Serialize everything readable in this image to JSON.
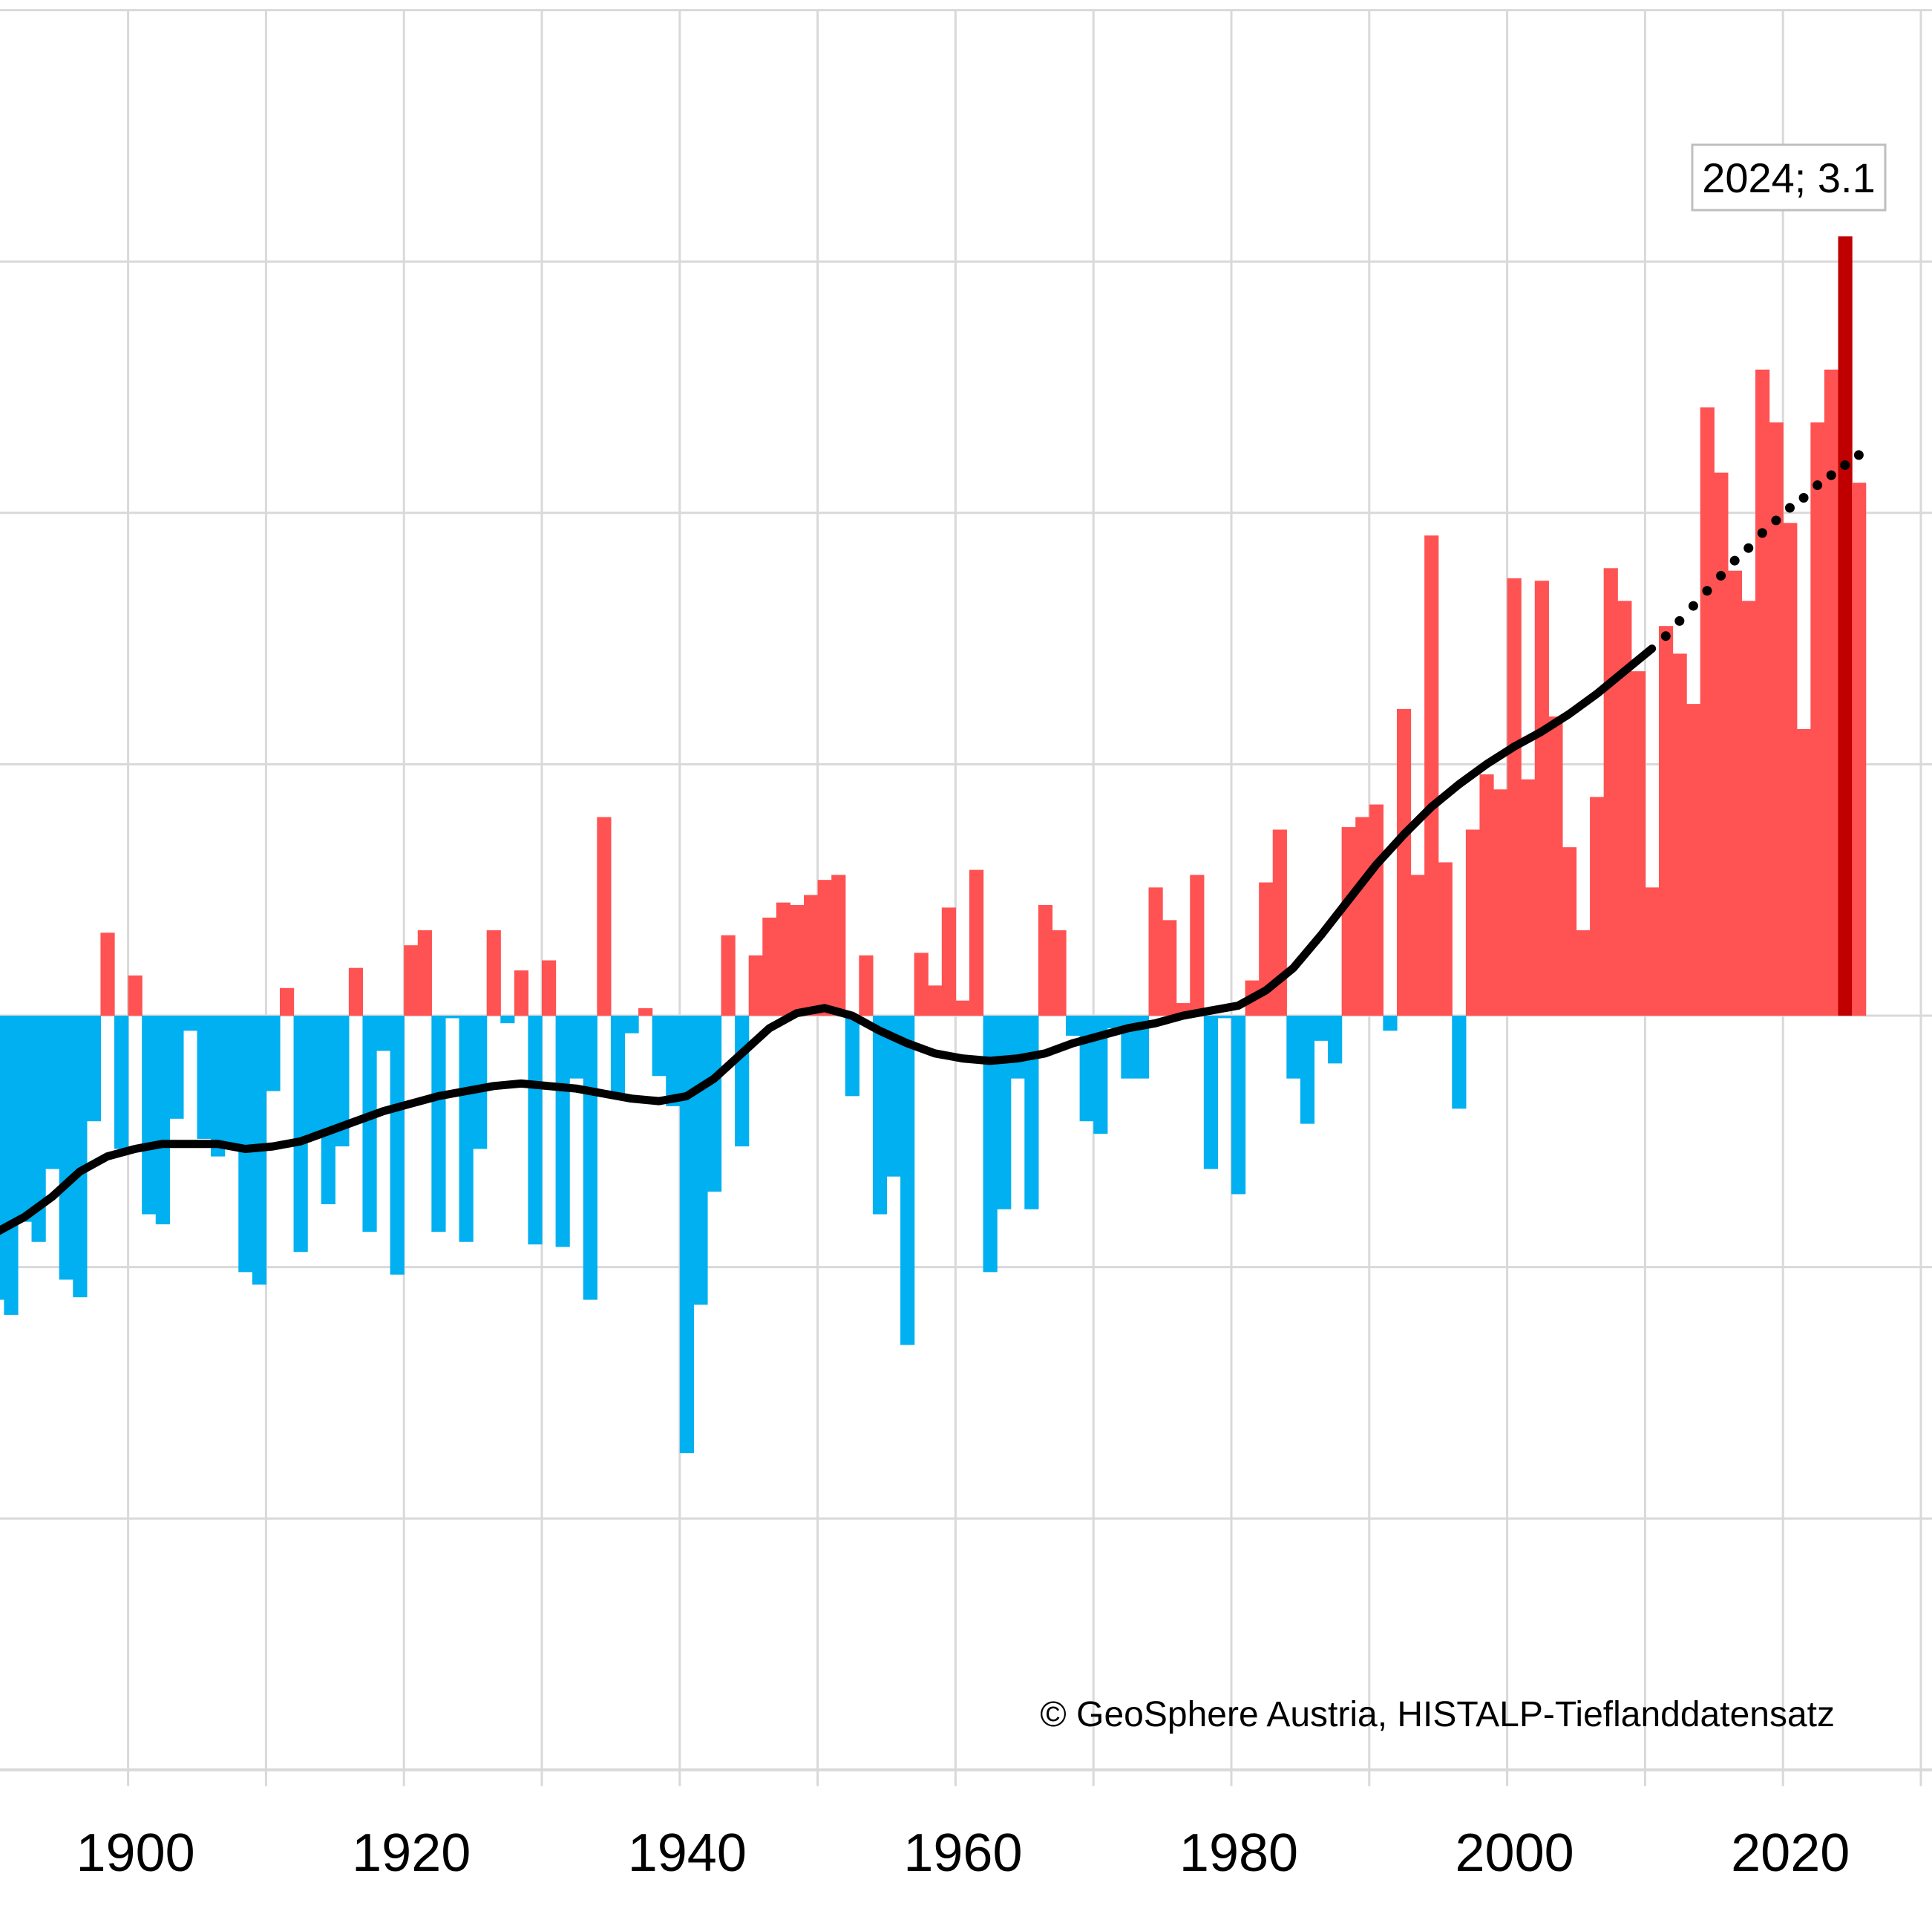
{
  "chart_data": {
    "type": "bar",
    "title": "",
    "xlabel": "",
    "ylabel": "",
    "xlim": [
      1890,
      2030
    ],
    "ylim": [
      -3,
      4
    ],
    "y_gridlines": [
      -3,
      -2,
      -1,
      0,
      1,
      2,
      3,
      4
    ],
    "x_gridlines": [
      1890,
      1900,
      1910,
      1920,
      1930,
      1940,
      1950,
      1960,
      1970,
      1980,
      1990,
      2000,
      2010,
      2020,
      2030
    ],
    "x_tick_labels": [
      "1900",
      "1920",
      "1940",
      "1960",
      "1980",
      "2000",
      "2020"
    ],
    "x_tick_values": [
      1900,
      1920,
      1940,
      1960,
      1980,
      2000,
      2020
    ],
    "grid": true,
    "colors": {
      "positive": "#ff5252",
      "negative": "#00b0f0",
      "highlight": "#c00000",
      "trend": "#000000",
      "grid": "#d9d9d9"
    },
    "highlight_year": 2024,
    "annotation": "2024; 3.1",
    "credit": "© GeoSphere Austria, HISTALP-Tieflanddatensatz",
    "series": [
      {
        "name": "annual anomaly",
        "years": [
          1890,
          1891,
          1892,
          1893,
          1894,
          1895,
          1896,
          1897,
          1898,
          1899,
          1900,
          1901,
          1902,
          1903,
          1904,
          1905,
          1906,
          1907,
          1908,
          1909,
          1910,
          1911,
          1912,
          1913,
          1914,
          1915,
          1916,
          1917,
          1918,
          1919,
          1920,
          1921,
          1922,
          1923,
          1924,
          1925,
          1926,
          1927,
          1928,
          1929,
          1930,
          1931,
          1932,
          1933,
          1934,
          1935,
          1936,
          1937,
          1938,
          1939,
          1940,
          1941,
          1942,
          1943,
          1944,
          1945,
          1946,
          1947,
          1948,
          1949,
          1950,
          1951,
          1952,
          1953,
          1954,
          1955,
          1956,
          1957,
          1958,
          1959,
          1960,
          1961,
          1962,
          1963,
          1964,
          1965,
          1966,
          1967,
          1968,
          1969,
          1970,
          1971,
          1972,
          1973,
          1974,
          1975,
          1976,
          1977,
          1978,
          1979,
          1980,
          1981,
          1982,
          1983,
          1984,
          1985,
          1986,
          1987,
          1988,
          1989,
          1990,
          1991,
          1992,
          1993,
          1994,
          1995,
          1996,
          1997,
          1998,
          1999,
          2000,
          2001,
          2002,
          2003,
          2004,
          2005,
          2006,
          2007,
          2008,
          2009,
          2010,
          2011,
          2012,
          2013,
          2014,
          2015,
          2016,
          2017,
          2018,
          2019,
          2020,
          2021,
          2022,
          2023,
          2024,
          2025
        ],
        "values": [
          -1.13,
          -1.19,
          -0.82,
          -0.9,
          -0.61,
          -1.05,
          -1.12,
          -0.42,
          0.33,
          -0.53,
          0.16,
          -0.79,
          -0.83,
          -0.41,
          -0.06,
          -0.49,
          -0.56,
          -0.51,
          -1.02,
          -1.07,
          -0.3,
          0.11,
          -0.94,
          -0.47,
          -0.75,
          -0.52,
          0.19,
          -0.86,
          -0.14,
          -1.03,
          0.28,
          0.34,
          -0.86,
          -0.01,
          -0.9,
          -0.53,
          0.34,
          -0.03,
          0.18,
          -0.91,
          0.22,
          -0.92,
          -0.25,
          -1.13,
          0.79,
          -0.31,
          -0.07,
          0.03,
          -0.24,
          -0.36,
          -1.74,
          -1.15,
          -0.7,
          0.32,
          -0.52,
          0.24,
          0.39,
          0.45,
          0.44,
          0.48,
          0.54,
          0.56,
          -0.32,
          0.24,
          -0.79,
          -0.64,
          -1.31,
          0.25,
          0.12,
          0.43,
          0.06,
          0.58,
          -1.02,
          -0.77,
          -0.25,
          -0.77,
          0.44,
          0.34,
          -0.08,
          -0.42,
          -0.47,
          -0.05,
          -0.25,
          -0.25,
          0.51,
          0.38,
          0.05,
          0.56,
          -0.61,
          -0.01,
          -0.71,
          0.14,
          0.53,
          0.74,
          -0.25,
          -0.43,
          -0.1,
          -0.19,
          0.75,
          0.79,
          0.84,
          -0.06,
          1.22,
          0.56,
          1.91,
          0.61,
          -0.37,
          0.74,
          0.96,
          0.9,
          1.74,
          0.94,
          1.73,
          1.19,
          0.67,
          0.34,
          0.87,
          1.78,
          1.65,
          1.37,
          0.51,
          1.55,
          1.44,
          1.24,
          2.42,
          2.16,
          1.77,
          1.65,
          2.57,
          2.36,
          1.96,
          1.14,
          2.36,
          2.57,
          3.1,
          2.12
        ]
      },
      {
        "name": "smoothed trend",
        "type": "line",
        "years": [
          1890,
          1892,
          1894,
          1896,
          1898,
          1900,
          1902,
          1904,
          1906,
          1908,
          1910,
          1912,
          1914,
          1916,
          1918,
          1920,
          1922,
          1924,
          1926,
          1928,
          1930,
          1932,
          1934,
          1936,
          1938,
          1940,
          1942,
          1944,
          1946,
          1948,
          1950,
          1952,
          1954,
          1956,
          1958,
          1960,
          1962,
          1964,
          1966,
          1968,
          1970,
          1972,
          1974,
          1976,
          1978,
          1980,
          1982,
          1984,
          1986,
          1988,
          1990,
          1992,
          1994,
          1996,
          1998,
          2000,
          2002,
          2004,
          2006,
          2008,
          2010
        ],
        "values": [
          -0.86,
          -0.8,
          -0.72,
          -0.62,
          -0.56,
          -0.53,
          -0.51,
          -0.51,
          -0.51,
          -0.53,
          -0.52,
          -0.5,
          -0.46,
          -0.42,
          -0.38,
          -0.35,
          -0.32,
          -0.3,
          -0.28,
          -0.27,
          -0.28,
          -0.29,
          -0.31,
          -0.33,
          -0.34,
          -0.32,
          -0.25,
          -0.15,
          -0.05,
          0.01,
          0.03,
          0.0,
          -0.06,
          -0.11,
          -0.15,
          -0.17,
          -0.18,
          -0.17,
          -0.15,
          -0.11,
          -0.08,
          -0.05,
          -0.03,
          0.0,
          0.02,
          0.04,
          0.1,
          0.19,
          0.32,
          0.46,
          0.6,
          0.72,
          0.83,
          0.92,
          1.0,
          1.07,
          1.13,
          1.2,
          1.28,
          1.37,
          1.46
        ]
      },
      {
        "name": "trend extension",
        "type": "dotted",
        "years": [
          2011,
          2012,
          2013,
          2014,
          2015,
          2016,
          2017,
          2018,
          2019,
          2020,
          2021,
          2022,
          2023,
          2024,
          2025
        ],
        "values": [
          1.51,
          1.57,
          1.63,
          1.69,
          1.75,
          1.81,
          1.86,
          1.92,
          1.97,
          2.02,
          2.06,
          2.11,
          2.15,
          2.19,
          2.23
        ]
      }
    ]
  }
}
